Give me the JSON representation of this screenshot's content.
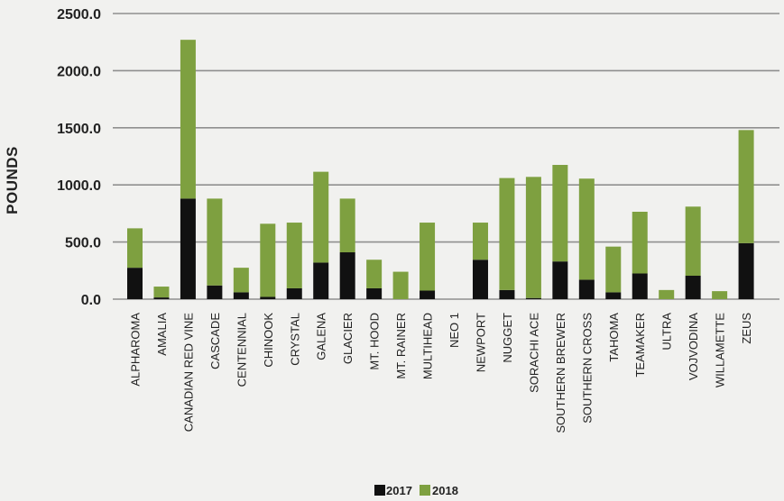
{
  "chart_data": {
    "type": "bar",
    "stacked": true,
    "ylabel": "POUNDS",
    "ylim": [
      0,
      2500
    ],
    "yticks": [
      0,
      500,
      1000,
      1500,
      2000,
      2500
    ],
    "ytick_labels": [
      "0.0",
      "500.0",
      "1000.0",
      "1500.0",
      "2000.0",
      "2500.0"
    ],
    "grid": true,
    "legend_position": "bottom-center",
    "categories": [
      "ALPHAROMA",
      "AMALIA",
      "CANADIAN RED VINE",
      "CASCADE",
      "CENTENNIAL",
      "CHINOOK",
      "CRYSTAL",
      "GALENA",
      "GLACIER",
      "MT. HOOD",
      "MT. RAINER",
      "MULTIHEAD",
      "NEO 1",
      "NEWPORT",
      "NUGGET",
      "SORACHI ACE",
      "SOUTHERN BREWER",
      "SOUTHERN CROSS",
      "TAHOMA",
      "TEAMAKER",
      "ULTRA",
      "VOJVODINA",
      "WILLAMETTE",
      "ZEUS"
    ],
    "series": [
      {
        "name": "2017",
        "color": "#111111",
        "values": [
          275,
          15,
          880,
          120,
          60,
          20,
          95,
          320,
          410,
          95,
          0,
          75,
          0,
          345,
          80,
          10,
          330,
          170,
          60,
          225,
          0,
          205,
          0,
          490
        ]
      },
      {
        "name": "2018",
        "color": "#7ea040",
        "values": [
          345,
          95,
          1390,
          760,
          215,
          640,
          575,
          795,
          470,
          250,
          240,
          595,
          0,
          325,
          980,
          1060,
          845,
          885,
          400,
          540,
          80,
          605,
          70,
          990
        ]
      }
    ]
  }
}
